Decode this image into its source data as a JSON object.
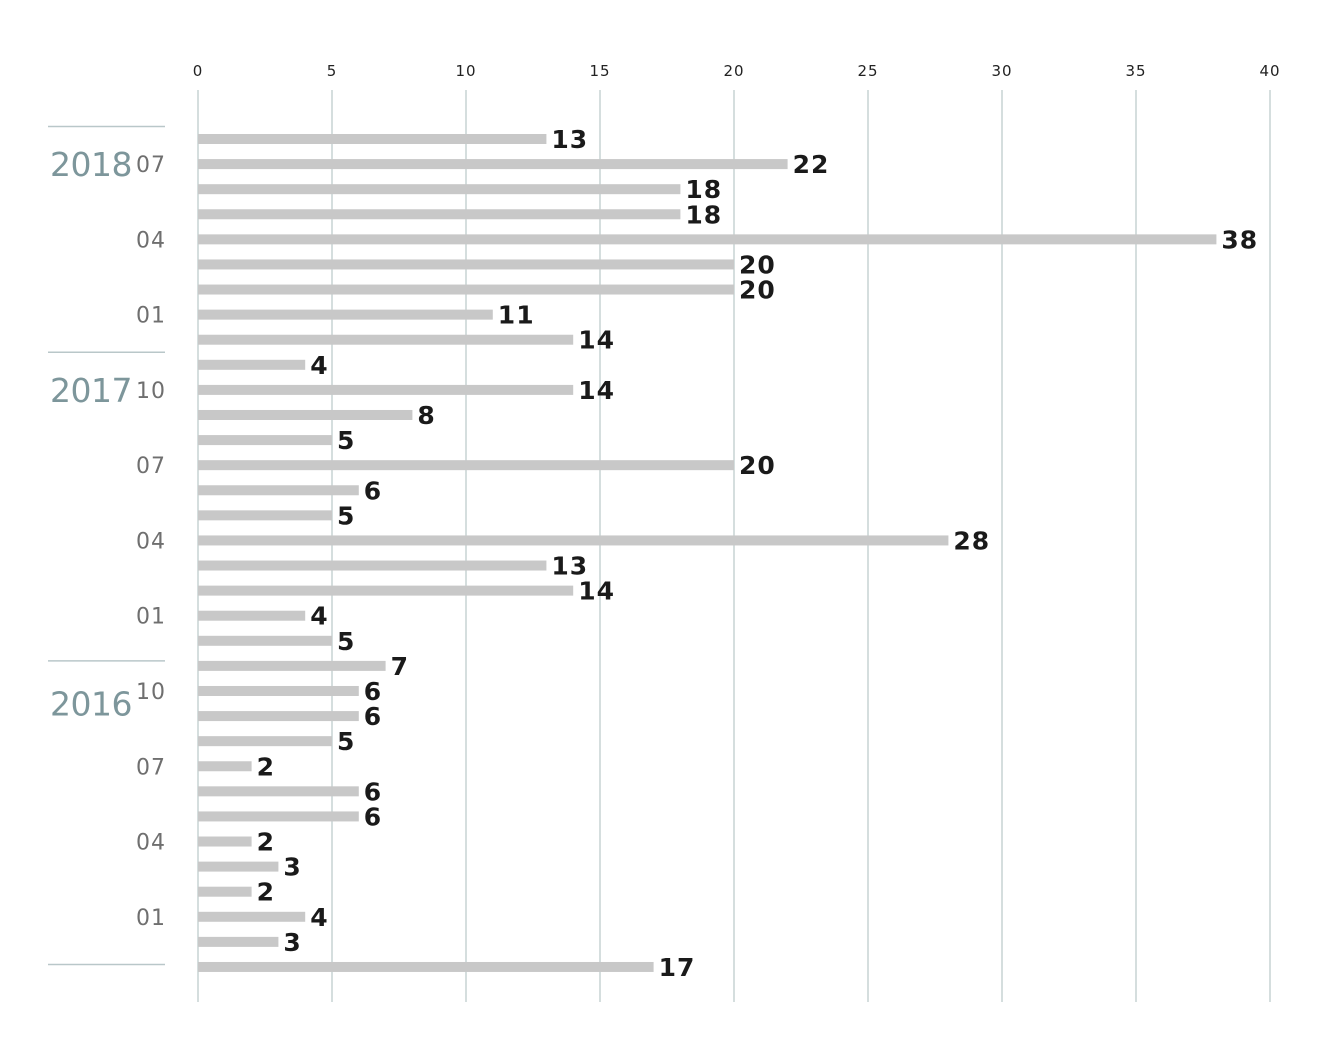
{
  "chart_data": {
    "type": "bar",
    "orientation": "horizontal",
    "xlim": [
      0,
      40
    ],
    "x_ticks": [
      0,
      5,
      10,
      15,
      20,
      25,
      30,
      35,
      40
    ],
    "x_tick_labels": [
      "0",
      "5",
      "10",
      "15",
      "20",
      "25",
      "30",
      "35",
      "40"
    ],
    "grid": true,
    "values": [
      13,
      22,
      18,
      18,
      38,
      20,
      20,
      11,
      14,
      4,
      14,
      8,
      5,
      20,
      6,
      5,
      28,
      13,
      14,
      4,
      5,
      7,
      6,
      6,
      5,
      2,
      6,
      6,
      2,
      3,
      2,
      4,
      3,
      17
    ],
    "value_labels": [
      "13",
      "22",
      "18",
      "18",
      "38",
      "20",
      "20",
      "11",
      "14",
      "4",
      "14",
      "8",
      "5",
      "20",
      "6",
      "5",
      "28",
      "13",
      "14",
      "4",
      "5",
      "7",
      "6",
      "6",
      "5",
      "2",
      "6",
      "6",
      "2",
      "3",
      "2",
      "4",
      "3",
      "17"
    ],
    "years": [
      {
        "label": "2018",
        "bar_index": 1
      },
      {
        "label": "2017",
        "bar_index": 10
      },
      {
        "label": "2016",
        "bar_index": 22.5
      }
    ],
    "months": [
      {
        "label": "07",
        "bar_index": 1
      },
      {
        "label": "04",
        "bar_index": 4
      },
      {
        "label": "01",
        "bar_index": 7
      },
      {
        "label": "10",
        "bar_index": 10
      },
      {
        "label": "07",
        "bar_index": 13
      },
      {
        "label": "04",
        "bar_index": 16
      },
      {
        "label": "01",
        "bar_index": 19
      },
      {
        "label": "10",
        "bar_index": 22
      },
      {
        "label": "07",
        "bar_index": 25
      },
      {
        "label": "04",
        "bar_index": 28
      },
      {
        "label": "01",
        "bar_index": 31
      }
    ],
    "year_dividers": [
      -0.5,
      8.5,
      20.8,
      32.9
    ],
    "colors": {
      "bar": "#c8c8c8",
      "grid": "#b9c7c9",
      "value_text": "#1a1a1a",
      "year_text": "#7d969b",
      "month_text": "#6f6f6f",
      "divider": "#b9c7c9"
    }
  }
}
